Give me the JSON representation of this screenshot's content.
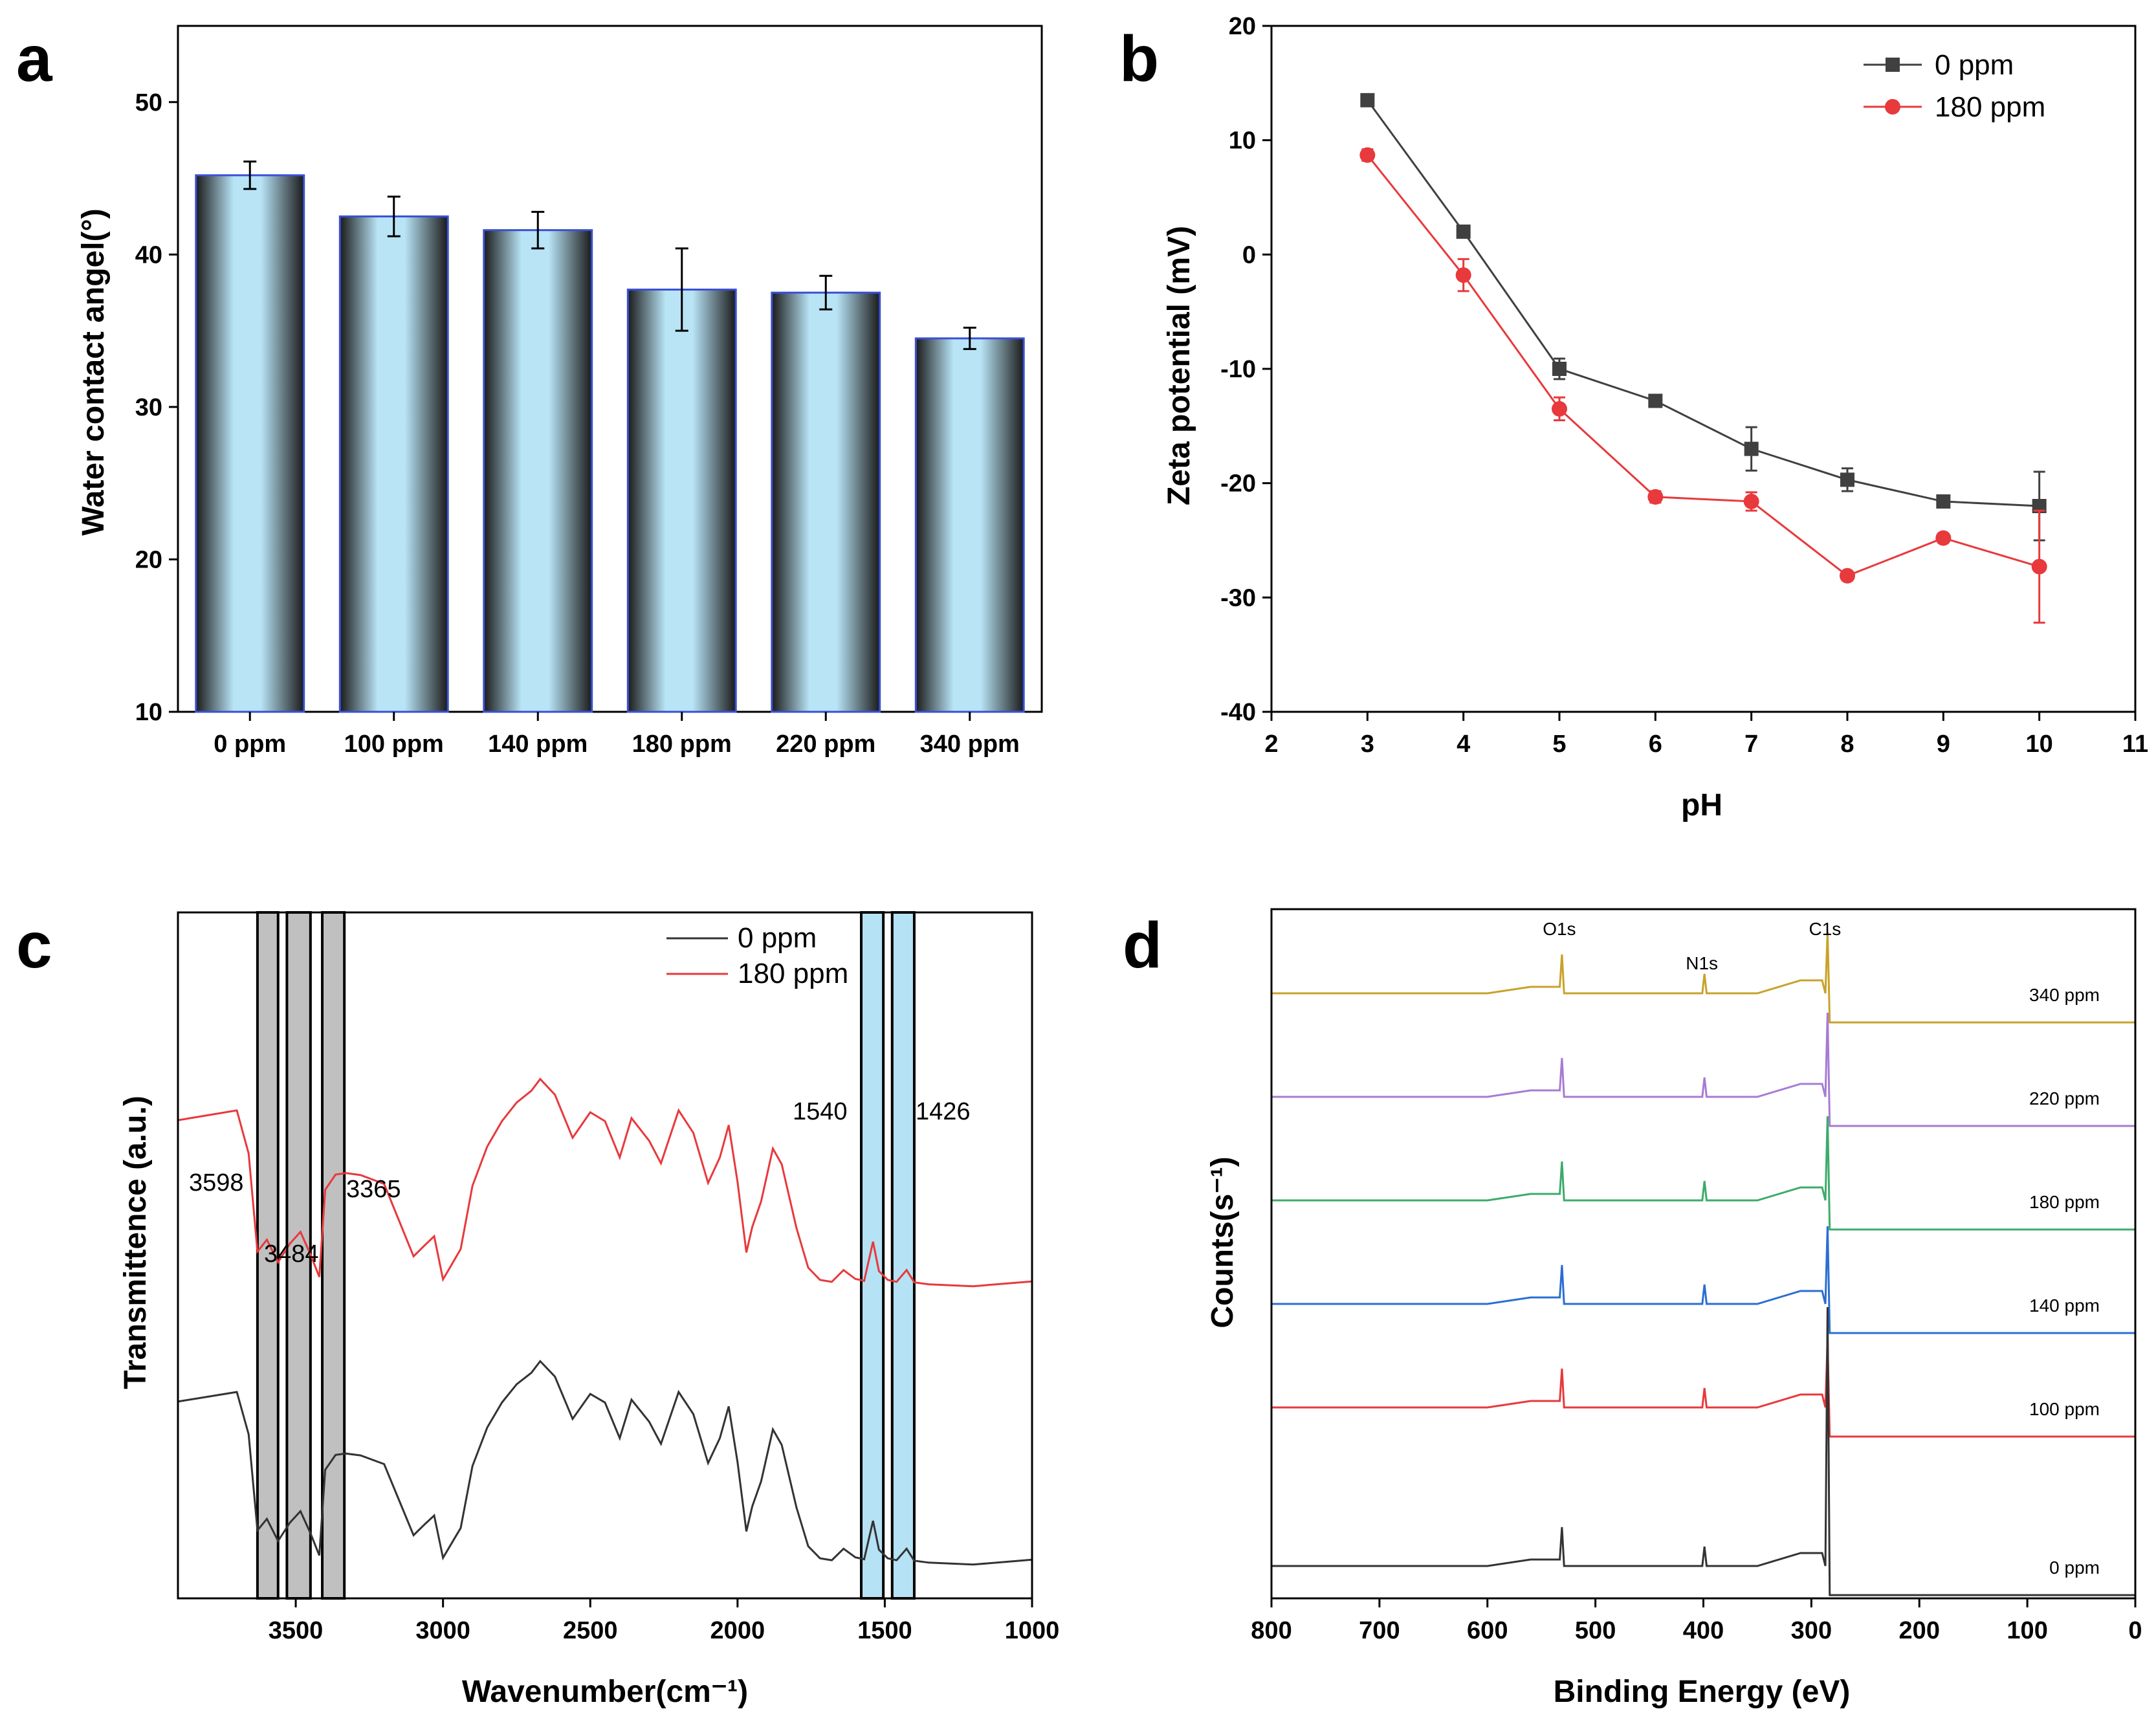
{
  "chart_data": [
    {
      "panel": "a",
      "type": "bar",
      "categories": [
        "0 ppm",
        "100 ppm",
        "140 ppm",
        "180 ppm",
        "220 ppm",
        "340 ppm"
      ],
      "values": [
        45.2,
        42.5,
        41.6,
        37.7,
        37.5,
        34.5
      ],
      "errors": [
        0.9,
        1.3,
        1.2,
        2.7,
        1.1,
        0.7
      ],
      "xlabel": "",
      "ylabel": "Water contact angel(°)",
      "ylim": [
        10,
        55
      ],
      "yticks": [
        10,
        20,
        30,
        40,
        50
      ],
      "colors": {
        "bar_fill": "#b8e4f6",
        "bar_edge": "#2a2a2a",
        "outline": "#3b4fd6"
      }
    },
    {
      "panel": "b",
      "type": "line",
      "x": [
        3,
        4,
        5,
        6,
        7,
        8,
        9,
        10
      ],
      "series": [
        {
          "name": "0 ppm",
          "values": [
            13.5,
            2.0,
            -10.0,
            -12.8,
            -17.0,
            -19.7,
            -21.6,
            -22.0
          ],
          "errors": [
            0.3,
            0.5,
            0.9,
            0.4,
            1.9,
            1.0,
            0.5,
            3.0
          ],
          "color": "#404040",
          "marker": "square"
        },
        {
          "name": "180 ppm",
          "values": [
            8.7,
            -1.8,
            -13.5,
            -21.2,
            -21.6,
            -28.1,
            -24.8,
            -27.3
          ],
          "errors": [
            0.5,
            1.4,
            1.0,
            0.5,
            0.8,
            0.4,
            0.4,
            4.9
          ],
          "color": "#e8393c",
          "marker": "circle"
        }
      ],
      "xlabel": "pH",
      "ylabel": "Zeta potential (mV)",
      "xlim": [
        2,
        11
      ],
      "ylim": [
        -40,
        20
      ],
      "xticks": [
        2,
        3,
        4,
        5,
        6,
        7,
        8,
        9,
        10,
        11
      ],
      "yticks": [
        -40,
        -30,
        -20,
        -10,
        0,
        10,
        20
      ],
      "legend": "top-right"
    },
    {
      "panel": "c",
      "type": "line",
      "xlabel": "Wavenumber(cm⁻¹)",
      "ylabel": "Transmittence  (a.u.)",
      "xlim": [
        3900,
        1000
      ],
      "xticks": [
        3500,
        3000,
        2500,
        2000,
        1500,
        1000
      ],
      "tick_labels": [
        "3500",
        "3000",
        "2500",
        "2000",
        "1500",
        "1000"
      ],
      "x": [
        3900,
        3800,
        3700,
        3660,
        3630,
        3598,
        3560,
        3520,
        3484,
        3450,
        3420,
        3400,
        3365,
        3330,
        3280,
        3200,
        3150,
        3100,
        3060,
        3030,
        3000,
        2970,
        2940,
        2900,
        2850,
        2800,
        2750,
        2700,
        2670,
        2620,
        2560,
        2500,
        2450,
        2400,
        2360,
        2300,
        2260,
        2200,
        2150,
        2100,
        2060,
        2030,
        2000,
        1970,
        1950,
        1920,
        1880,
        1850,
        1800,
        1760,
        1720,
        1680,
        1640,
        1600,
        1570,
        1540,
        1520,
        1490,
        1460,
        1426,
        1400,
        1350,
        1200,
        1000
      ],
      "series": [
        {
          "name": "0 ppm",
          "color": "#333333",
          "values": [
            0.48,
            0.5,
            0.52,
            0.4,
            0.1,
            0.14,
            0.08,
            0.12,
            0.16,
            0.1,
            0.04,
            0.28,
            0.33,
            0.34,
            0.32,
            0.3,
            0.2,
            0.1,
            0.12,
            0.15,
            0.03,
            0.06,
            0.11,
            0.3,
            0.42,
            0.48,
            0.54,
            0.58,
            0.6,
            0.56,
            0.44,
            0.52,
            0.48,
            0.38,
            0.5,
            0.42,
            0.36,
            0.52,
            0.46,
            0.3,
            0.38,
            0.48,
            0.3,
            0.1,
            0.18,
            0.26,
            0.4,
            0.36,
            0.18,
            0.05,
            0.02,
            0.02,
            0.06,
            0.02,
            0.02,
            0.14,
            0.04,
            0.02,
            0.02,
            0.06,
            0.01,
            0.01,
            0.01,
            0.01
          ]
        },
        {
          "name": "180 ppm",
          "color": "#e8393c",
          "values": [
            0.48,
            0.5,
            0.52,
            0.4,
            0.1,
            0.14,
            0.08,
            0.12,
            0.16,
            0.1,
            0.04,
            0.28,
            0.33,
            0.34,
            0.32,
            0.3,
            0.2,
            0.1,
            0.12,
            0.15,
            0.03,
            0.06,
            0.11,
            0.3,
            0.42,
            0.48,
            0.54,
            0.58,
            0.6,
            0.56,
            0.44,
            0.52,
            0.48,
            0.38,
            0.5,
            0.42,
            0.36,
            0.52,
            0.46,
            0.3,
            0.38,
            0.48,
            0.3,
            0.1,
            0.18,
            0.26,
            0.4,
            0.36,
            0.18,
            0.05,
            0.02,
            0.02,
            0.06,
            0.02,
            0.02,
            0.14,
            0.04,
            0.02,
            0.02,
            0.06,
            0.01,
            0.01,
            0.01,
            0.01
          ]
        }
      ],
      "highlight_bands": [
        {
          "from": 3630,
          "to": 3560,
          "color": "#c0c0c0"
        },
        {
          "from": 3530,
          "to": 3450,
          "color": "#c0c0c0"
        },
        {
          "from": 3410,
          "to": 3335,
          "color": "#c0c0c0"
        },
        {
          "from": 1580,
          "to": 1505,
          "color": "#b5e2f4"
        },
        {
          "from": 1475,
          "to": 1400,
          "color": "#b5e2f4"
        }
      ],
      "annotations": [
        "3598",
        "3484",
        "3365",
        "1540",
        "1426"
      ],
      "legend": "top-right"
    },
    {
      "panel": "d",
      "type": "line",
      "xlabel": "Binding Energy (eV)",
      "ylabel": "Counts(s⁻¹)",
      "xlim": [
        800,
        0
      ],
      "xticks": [
        800,
        700,
        600,
        500,
        400,
        300,
        200,
        100,
        0
      ],
      "peaks": [
        {
          "name": "O1s",
          "energy": 531
        },
        {
          "name": "N1s",
          "energy": 399
        },
        {
          "name": "C1s",
          "energy": 285
        }
      ],
      "series": [
        {
          "name": "340 ppm",
          "color": "#c8a22a"
        },
        {
          "name": "220 ppm",
          "color": "#a77bd3"
        },
        {
          "name": "180 ppm",
          "color": "#3cab6b"
        },
        {
          "name": "140 ppm",
          "color": "#2b6ed3"
        },
        {
          "name": "100 ppm",
          "color": "#e8393c"
        },
        {
          "name": "0 ppm",
          "color": "#333333"
        }
      ]
    }
  ],
  "panels": {
    "a": "a",
    "b": "b",
    "c": "c",
    "d": "d"
  }
}
